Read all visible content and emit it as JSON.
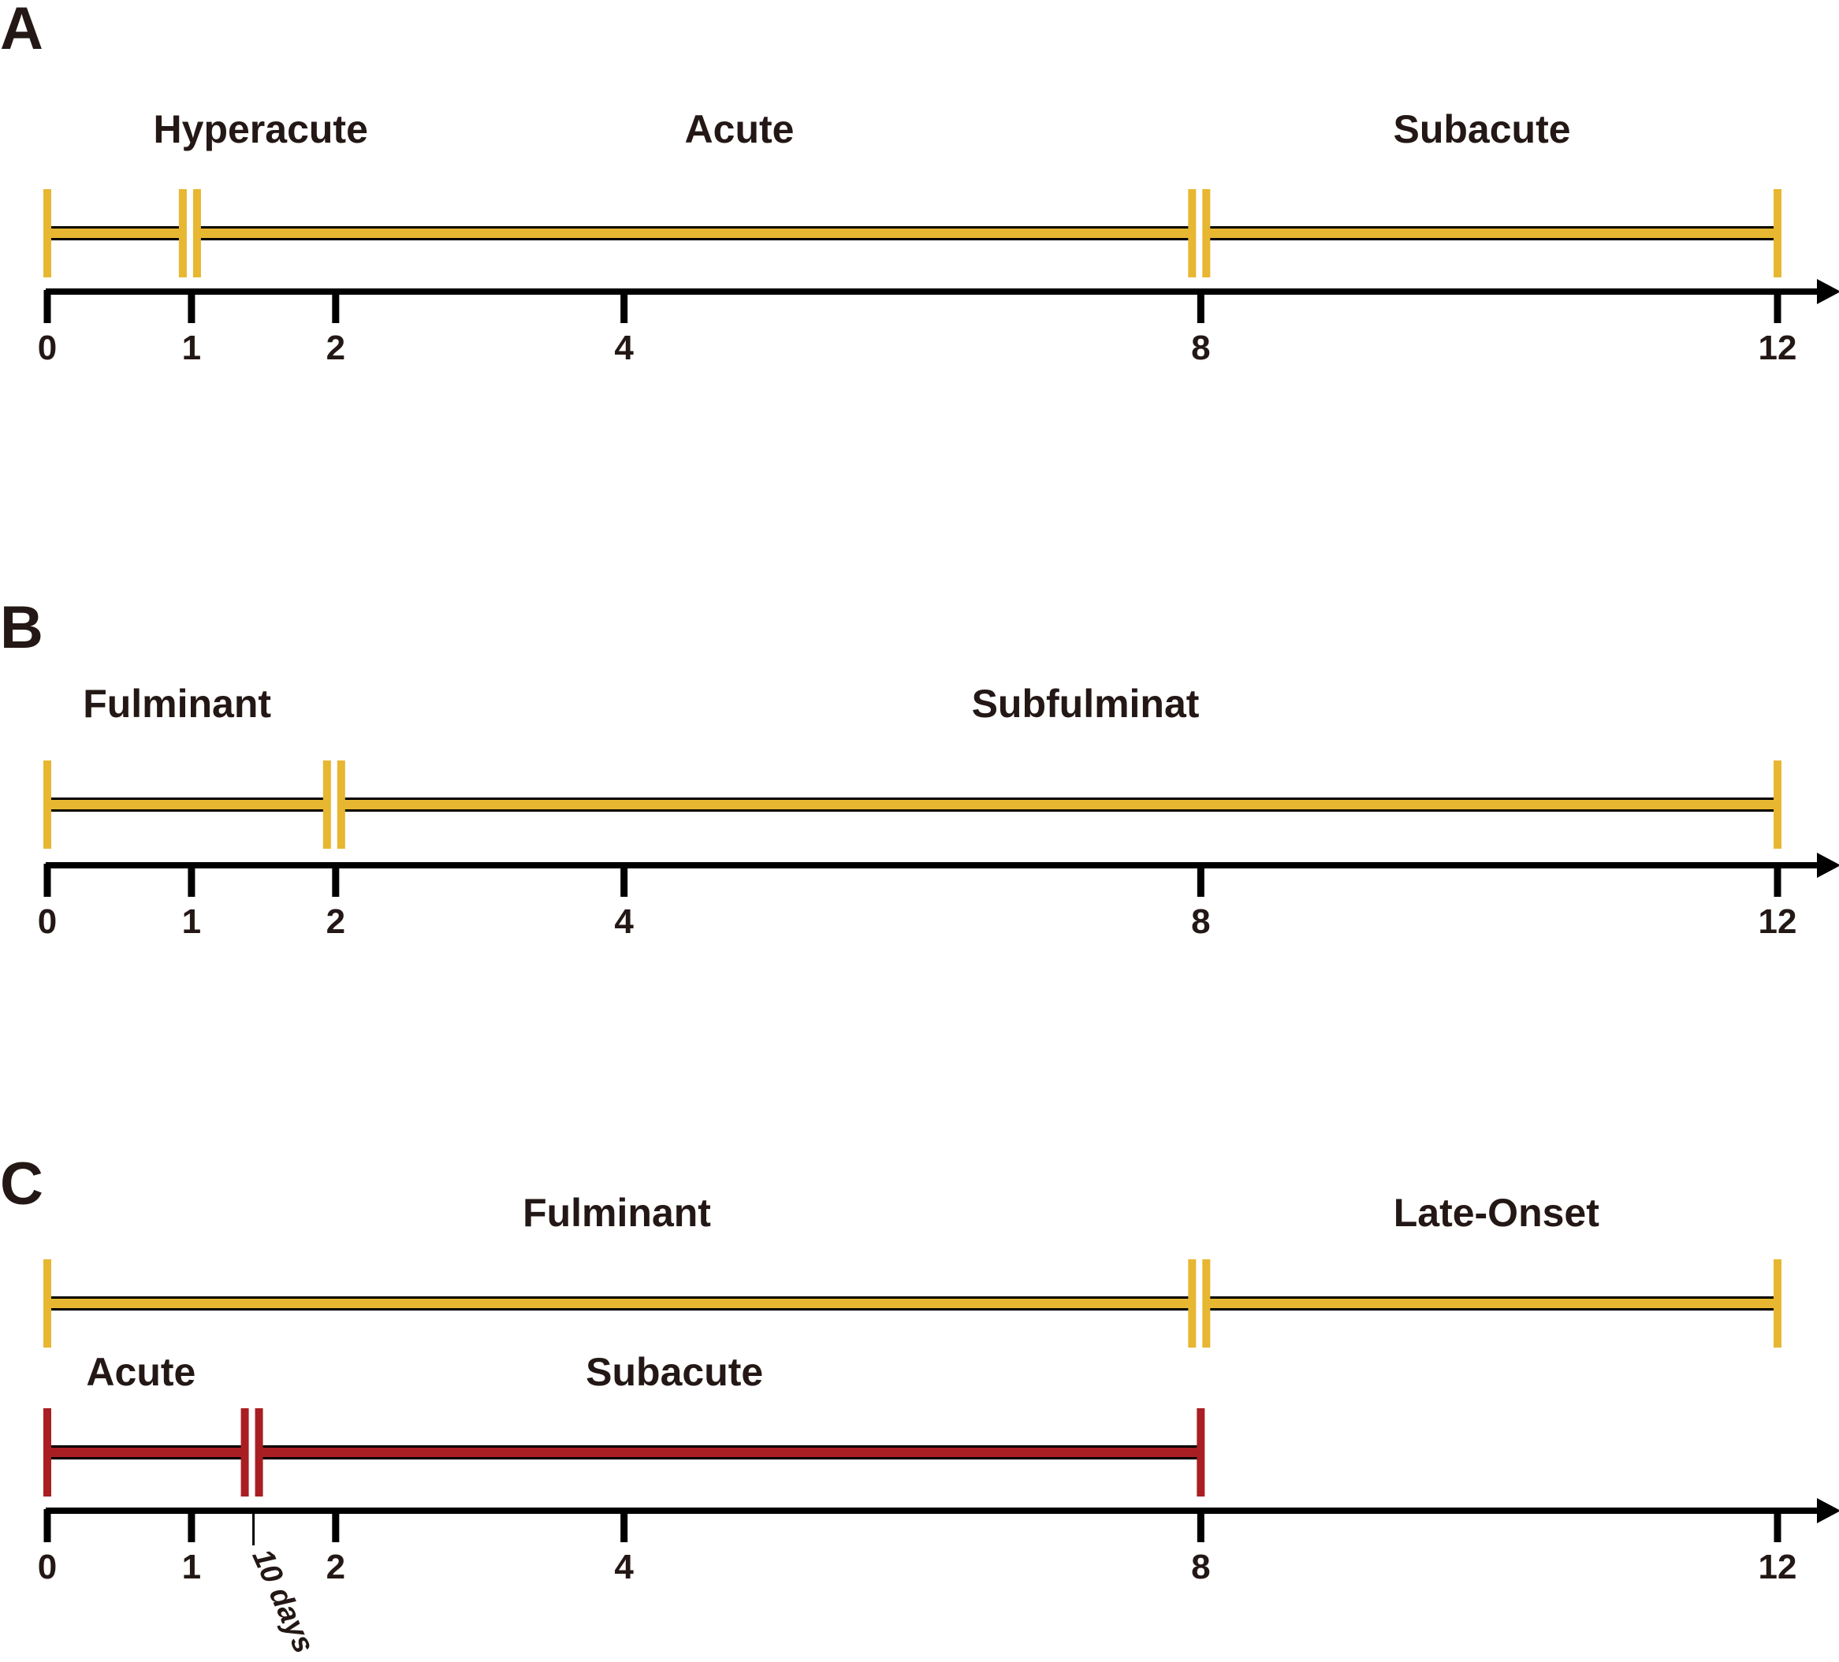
{
  "colors": {
    "gold": "#e7b731",
    "red": "#a91e22",
    "axis": "#000000",
    "text": "#231815"
  },
  "axis_max": 12,
  "panels": [
    {
      "id": "A",
      "letter": "A",
      "tick_values": [
        0,
        1,
        2,
        4,
        8,
        12
      ],
      "tick_labels": [
        "0",
        "1",
        "2",
        "4",
        "8",
        "12"
      ],
      "bars": [
        {
          "color": "gold",
          "breaks": [
            0,
            1,
            8,
            12
          ],
          "phases": [
            "Hyperacute",
            "Acute",
            "Subacute"
          ]
        }
      ]
    },
    {
      "id": "B",
      "letter": "B",
      "tick_values": [
        0,
        1,
        2,
        4,
        8,
        12
      ],
      "tick_labels": [
        "0",
        "1",
        "2",
        "4",
        "8",
        "12"
      ],
      "bars": [
        {
          "color": "gold",
          "breaks": [
            0,
            2,
            12
          ],
          "phases": [
            "Fulminant",
            "Subfulminat"
          ]
        }
      ]
    },
    {
      "id": "C",
      "letter": "C",
      "tick_values": [
        0,
        1,
        2,
        4,
        8,
        12
      ],
      "tick_labels": [
        "0",
        "1",
        "2",
        "4",
        "8",
        "12"
      ],
      "extra_tick": {
        "value": 1.43,
        "label": "10 days"
      },
      "bars": [
        {
          "color": "gold",
          "breaks": [
            0,
            8,
            12
          ],
          "phases": [
            "Fulminant",
            "Late-Onset"
          ]
        },
        {
          "color": "red",
          "breaks": [
            0,
            1.43,
            8
          ],
          "phases": [
            "Acute",
            "Subacute"
          ]
        }
      ]
    }
  ]
}
